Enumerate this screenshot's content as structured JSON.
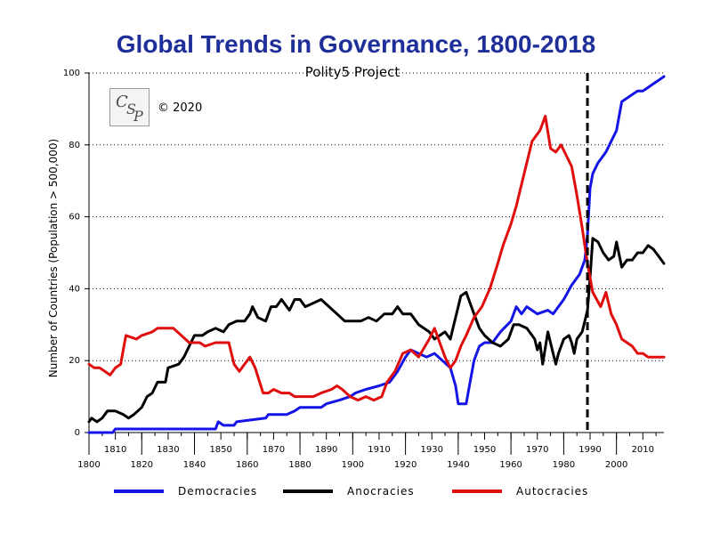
{
  "chart_data": {
    "type": "line",
    "title": "Global Trends in Governance, 1800-2018",
    "subtitle": "Polity5 Project",
    "ylabel": "Number of Countries (Population > 500,000)",
    "copyright": "© 2020",
    "logo_text": "CSP",
    "xlim": [
      1800,
      2018
    ],
    "ylim": [
      0,
      100
    ],
    "yticks": [
      0,
      20,
      40,
      60,
      80,
      100
    ],
    "xticks_upper": [
      1810,
      1830,
      1850,
      1870,
      1890,
      1910,
      1930,
      1950,
      1970,
      1990,
      2010
    ],
    "xticks_lower": [
      1800,
      1820,
      1840,
      1860,
      1880,
      1900,
      1920,
      1940,
      1960,
      1980,
      2000
    ],
    "ytick_labels": [
      "0",
      "20",
      "40",
      "60",
      "80",
      "100"
    ],
    "xtick_labels_upper": [
      "1810",
      "1830",
      "1850",
      "1870",
      "1890",
      "1910",
      "1930",
      "1950",
      "1970",
      "1990",
      "2010"
    ],
    "xtick_labels_lower": [
      "1800",
      "1820",
      "1840",
      "1860",
      "1880",
      "1900",
      "1920",
      "1940",
      "1960",
      "1980",
      "2000"
    ],
    "grid": "horizontal-dotted",
    "reference_line_year": 1989,
    "legend_position": "bottom",
    "series": [
      {
        "name": "Democracies",
        "color": "#1414e6",
        "points": [
          [
            1800,
            0
          ],
          [
            1809,
            0
          ],
          [
            1810,
            1
          ],
          [
            1848,
            1
          ],
          [
            1849,
            3
          ],
          [
            1851,
            2
          ],
          [
            1855,
            2
          ],
          [
            1856,
            3
          ],
          [
            1867,
            4
          ],
          [
            1868,
            5
          ],
          [
            1875,
            5
          ],
          [
            1878,
            6
          ],
          [
            1880,
            7
          ],
          [
            1888,
            7
          ],
          [
            1890,
            8
          ],
          [
            1895,
            9
          ],
          [
            1899,
            10
          ],
          [
            1901,
            11
          ],
          [
            1905,
            12
          ],
          [
            1910,
            13
          ],
          [
            1914,
            14
          ],
          [
            1917,
            17
          ],
          [
            1920,
            21
          ],
          [
            1922,
            23
          ],
          [
            1925,
            22
          ],
          [
            1928,
            21
          ],
          [
            1931,
            22
          ],
          [
            1934,
            20
          ],
          [
            1937,
            18
          ],
          [
            1939,
            13
          ],
          [
            1940,
            8
          ],
          [
            1943,
            8
          ],
          [
            1944,
            12
          ],
          [
            1946,
            20
          ],
          [
            1948,
            24
          ],
          [
            1950,
            25
          ],
          [
            1953,
            25
          ],
          [
            1956,
            28
          ],
          [
            1960,
            31
          ],
          [
            1962,
            35
          ],
          [
            1964,
            33
          ],
          [
            1966,
            35
          ],
          [
            1970,
            33
          ],
          [
            1974,
            34
          ],
          [
            1976,
            33
          ],
          [
            1980,
            37
          ],
          [
            1983,
            41
          ],
          [
            1986,
            44
          ],
          [
            1988,
            48
          ],
          [
            1989,
            55
          ],
          [
            1990,
            68
          ],
          [
            1991,
            72
          ],
          [
            1993,
            75
          ],
          [
            1996,
            78
          ],
          [
            1998,
            81
          ],
          [
            2000,
            84
          ],
          [
            2002,
            92
          ],
          [
            2004,
            93
          ],
          [
            2006,
            94
          ],
          [
            2008,
            95
          ],
          [
            2010,
            95
          ],
          [
            2012,
            96
          ],
          [
            2014,
            97
          ],
          [
            2016,
            98
          ],
          [
            2018,
            99
          ]
        ]
      },
      {
        "name": "Anocracies",
        "color": "#000000",
        "points": [
          [
            1800,
            3
          ],
          [
            1801,
            4
          ],
          [
            1803,
            3
          ],
          [
            1805,
            4
          ],
          [
            1807,
            6
          ],
          [
            1810,
            6
          ],
          [
            1813,
            5
          ],
          [
            1815,
            4
          ],
          [
            1817,
            5
          ],
          [
            1820,
            7
          ],
          [
            1822,
            10
          ],
          [
            1824,
            11
          ],
          [
            1826,
            14
          ],
          [
            1829,
            14
          ],
          [
            1830,
            18
          ],
          [
            1834,
            19
          ],
          [
            1836,
            21
          ],
          [
            1838,
            24
          ],
          [
            1840,
            27
          ],
          [
            1843,
            27
          ],
          [
            1845,
            28
          ],
          [
            1848,
            29
          ],
          [
            1851,
            28
          ],
          [
            1853,
            30
          ],
          [
            1856,
            31
          ],
          [
            1859,
            31
          ],
          [
            1861,
            33
          ],
          [
            1862,
            35
          ],
          [
            1864,
            32
          ],
          [
            1867,
            31
          ],
          [
            1869,
            35
          ],
          [
            1871,
            35
          ],
          [
            1873,
            37
          ],
          [
            1876,
            34
          ],
          [
            1878,
            37
          ],
          [
            1880,
            37
          ],
          [
            1882,
            35
          ],
          [
            1885,
            36
          ],
          [
            1888,
            37
          ],
          [
            1891,
            35
          ],
          [
            1894,
            33
          ],
          [
            1897,
            31
          ],
          [
            1903,
            31
          ],
          [
            1906,
            32
          ],
          [
            1909,
            31
          ],
          [
            1912,
            33
          ],
          [
            1915,
            33
          ],
          [
            1917,
            35
          ],
          [
            1919,
            33
          ],
          [
            1922,
            33
          ],
          [
            1925,
            30
          ],
          [
            1927,
            29
          ],
          [
            1929,
            28
          ],
          [
            1931,
            26
          ],
          [
            1933,
            27
          ],
          [
            1935,
            28
          ],
          [
            1937,
            26
          ],
          [
            1939,
            32
          ],
          [
            1941,
            38
          ],
          [
            1943,
            39
          ],
          [
            1944,
            37
          ],
          [
            1946,
            33
          ],
          [
            1948,
            29
          ],
          [
            1950,
            27
          ],
          [
            1953,
            25
          ],
          [
            1956,
            24
          ],
          [
            1959,
            26
          ],
          [
            1961,
            30
          ],
          [
            1963,
            30
          ],
          [
            1966,
            29
          ],
          [
            1969,
            26
          ],
          [
            1970,
            23
          ],
          [
            1971,
            25
          ],
          [
            1972,
            19
          ],
          [
            1974,
            28
          ],
          [
            1976,
            22
          ],
          [
            1977,
            19
          ],
          [
            1978,
            22
          ],
          [
            1980,
            26
          ],
          [
            1982,
            27
          ],
          [
            1983,
            25
          ],
          [
            1984,
            22
          ],
          [
            1985,
            26
          ],
          [
            1987,
            28
          ],
          [
            1989,
            34
          ],
          [
            1990,
            43
          ],
          [
            1991,
            54
          ],
          [
            1993,
            53
          ],
          [
            1995,
            50
          ],
          [
            1997,
            48
          ],
          [
            1999,
            49
          ],
          [
            2000,
            53
          ],
          [
            2002,
            46
          ],
          [
            2004,
            48
          ],
          [
            2006,
            48
          ],
          [
            2008,
            50
          ],
          [
            2010,
            50
          ],
          [
            2012,
            52
          ],
          [
            2014,
            51
          ],
          [
            2016,
            49
          ],
          [
            2018,
            47
          ]
        ]
      },
      {
        "name": "Autocracies",
        "color": "#e00d0d",
        "points": [
          [
            1800,
            19
          ],
          [
            1802,
            18
          ],
          [
            1804,
            18
          ],
          [
            1806,
            17
          ],
          [
            1808,
            16
          ],
          [
            1810,
            18
          ],
          [
            1812,
            19
          ],
          [
            1813,
            23
          ],
          [
            1814,
            27
          ],
          [
            1818,
            26
          ],
          [
            1820,
            27
          ],
          [
            1824,
            28
          ],
          [
            1826,
            29
          ],
          [
            1832,
            29
          ],
          [
            1835,
            27
          ],
          [
            1838,
            25
          ],
          [
            1842,
            25
          ],
          [
            1844,
            24
          ],
          [
            1848,
            25
          ],
          [
            1853,
            25
          ],
          [
            1855,
            19
          ],
          [
            1857,
            17
          ],
          [
            1859,
            19
          ],
          [
            1861,
            21
          ],
          [
            1863,
            18
          ],
          [
            1866,
            11
          ],
          [
            1868,
            11
          ],
          [
            1870,
            12
          ],
          [
            1873,
            11
          ],
          [
            1876,
            11
          ],
          [
            1878,
            10
          ],
          [
            1885,
            10
          ],
          [
            1888,
            11
          ],
          [
            1892,
            12
          ],
          [
            1894,
            13
          ],
          [
            1896,
            12
          ],
          [
            1899,
            10
          ],
          [
            1902,
            9
          ],
          [
            1905,
            10
          ],
          [
            1908,
            9
          ],
          [
            1911,
            10
          ],
          [
            1913,
            14
          ],
          [
            1916,
            17
          ],
          [
            1919,
            22
          ],
          [
            1922,
            23
          ],
          [
            1925,
            21
          ],
          [
            1929,
            26
          ],
          [
            1931,
            29
          ],
          [
            1933,
            25
          ],
          [
            1935,
            21
          ],
          [
            1937,
            18
          ],
          [
            1939,
            20
          ],
          [
            1941,
            24
          ],
          [
            1943,
            27
          ],
          [
            1946,
            32
          ],
          [
            1949,
            35
          ],
          [
            1952,
            40
          ],
          [
            1955,
            47
          ],
          [
            1957,
            52
          ],
          [
            1960,
            58
          ],
          [
            1962,
            63
          ],
          [
            1964,
            69
          ],
          [
            1966,
            75
          ],
          [
            1968,
            81
          ],
          [
            1971,
            84
          ],
          [
            1973,
            88
          ],
          [
            1975,
            79
          ],
          [
            1977,
            78
          ],
          [
            1979,
            80
          ],
          [
            1981,
            77
          ],
          [
            1983,
            74
          ],
          [
            1985,
            66
          ],
          [
            1987,
            57
          ],
          [
            1989,
            47
          ],
          [
            1991,
            39
          ],
          [
            1994,
            35
          ],
          [
            1996,
            39
          ],
          [
            1998,
            33
          ],
          [
            2000,
            30
          ],
          [
            2002,
            26
          ],
          [
            2004,
            25
          ],
          [
            2006,
            24
          ],
          [
            2008,
            22
          ],
          [
            2010,
            22
          ],
          [
            2012,
            21
          ],
          [
            2018,
            21
          ]
        ]
      }
    ]
  }
}
